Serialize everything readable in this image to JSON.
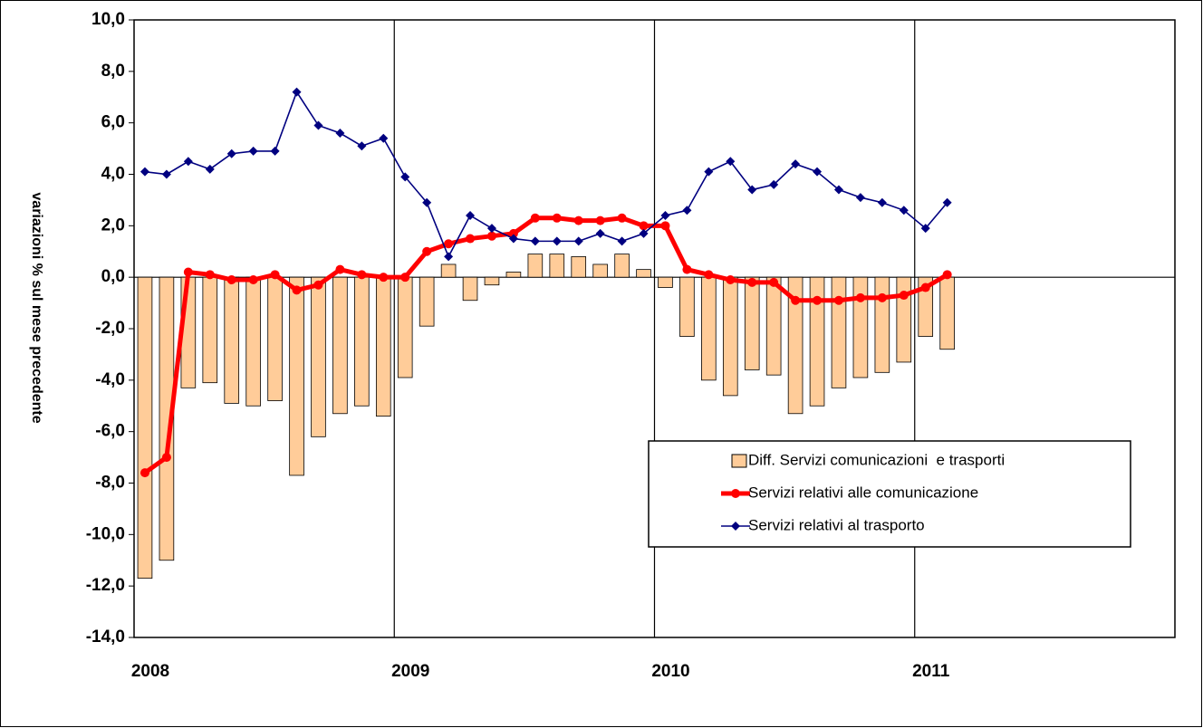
{
  "chart_data": {
    "type": "bar_line",
    "ylabel": "variazioni % sul mese precedente",
    "categories": [
      "2008",
      null,
      null,
      null,
      null,
      null,
      null,
      null,
      null,
      null,
      null,
      null,
      "2009",
      null,
      null,
      null,
      null,
      null,
      null,
      null,
      null,
      null,
      null,
      null,
      "2010",
      null,
      null,
      null,
      null,
      null,
      null,
      null,
      null,
      null,
      null,
      null,
      "2011",
      null,
      null,
      null,
      null,
      null,
      null,
      null,
      null,
      null,
      null,
      null
    ],
    "series": [
      {
        "name": "Diff. Servizi comunicazioni  e trasporti",
        "kind": "bar",
        "color": "#ffcc99",
        "values": [
          -11.7,
          -11.0,
          -4.3,
          -4.1,
          -4.9,
          -5.0,
          -4.8,
          -7.7,
          -6.2,
          -5.3,
          -5.0,
          -5.4,
          -3.9,
          -1.9,
          0.5,
          -0.9,
          -0.3,
          0.2,
          0.9,
          0.9,
          0.8,
          0.5,
          0.9,
          0.3,
          -0.4,
          -2.3,
          -4.0,
          -4.6,
          -3.6,
          -3.8,
          -5.3,
          -5.0,
          -4.3,
          -3.9,
          -3.7,
          -3.3,
          -2.3,
          -2.8,
          null,
          null,
          null,
          null,
          null,
          null,
          null,
          null,
          null,
          null
        ]
      },
      {
        "name": "Servizi relativi alle comunicazione",
        "kind": "line",
        "color": "#ff0000",
        "values": [
          -7.6,
          -7.0,
          0.2,
          0.1,
          -0.1,
          -0.1,
          0.1,
          -0.5,
          -0.3,
          0.3,
          0.1,
          0.0,
          0.0,
          1.0,
          1.3,
          1.5,
          1.6,
          1.7,
          2.3,
          2.3,
          2.2,
          2.2,
          2.3,
          2.0,
          2.0,
          0.3,
          0.1,
          -0.1,
          -0.2,
          -0.2,
          -0.9,
          -0.9,
          -0.9,
          -0.8,
          -0.8,
          -0.7,
          -0.4,
          0.1,
          null,
          null,
          null,
          null,
          null,
          null,
          null,
          null,
          null,
          null
        ]
      },
      {
        "name": "Servizi relativi al trasporto",
        "kind": "line",
        "color": "#000080",
        "values": [
          4.1,
          4.0,
          4.5,
          4.2,
          4.8,
          4.9,
          4.9,
          7.2,
          5.9,
          5.6,
          5.1,
          5.4,
          3.9,
          2.9,
          0.8,
          2.4,
          1.9,
          1.5,
          1.4,
          1.4,
          1.4,
          1.7,
          1.4,
          1.7,
          2.4,
          2.6,
          4.1,
          4.5,
          3.4,
          3.6,
          4.4,
          4.1,
          3.4,
          3.1,
          2.9,
          2.6,
          1.9,
          2.9,
          null,
          null,
          null,
          null,
          null,
          null,
          null,
          null,
          null,
          null
        ]
      }
    ],
    "ylim": [
      -14,
      10
    ],
    "yticks": [
      {
        "value": -14,
        "label": "-14,0"
      },
      {
        "value": -12,
        "label": "-12,0"
      },
      {
        "value": -10,
        "label": "-10,0"
      },
      {
        "value": -8,
        "label": "-8,0"
      },
      {
        "value": -6,
        "label": "-6,0"
      },
      {
        "value": -4,
        "label": "-4,0"
      },
      {
        "value": -2,
        "label": "-2,0"
      },
      {
        "value": 0,
        "label": "0,0"
      },
      {
        "value": 2,
        "label": "2,0"
      },
      {
        "value": 4,
        "label": "4,0"
      },
      {
        "value": 6,
        "label": "6,0"
      },
      {
        "value": 8,
        "label": "8,0"
      },
      {
        "value": 10,
        "label": "10,0"
      }
    ],
    "legend": "right"
  }
}
